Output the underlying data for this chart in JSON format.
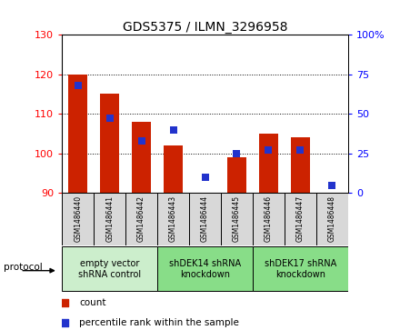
{
  "title": "GDS5375 / ILMN_3296958",
  "samples": [
    "GSM1486440",
    "GSM1486441",
    "GSM1486442",
    "GSM1486443",
    "GSM1486444",
    "GSM1486445",
    "GSM1486446",
    "GSM1486447",
    "GSM1486448"
  ],
  "counts": [
    120,
    115,
    108,
    102,
    90,
    99,
    105,
    104,
    90
  ],
  "percentiles": [
    68,
    47,
    33,
    40,
    10,
    25,
    27,
    27,
    5
  ],
  "ymin": 90,
  "ymax": 130,
  "y2min": 0,
  "y2max": 100,
  "yticks": [
    90,
    100,
    110,
    120,
    130
  ],
  "y2ticks": [
    0,
    25,
    50,
    75,
    100
  ],
  "bar_color": "#cc2200",
  "dot_color": "#2233cc",
  "groups": [
    {
      "label": "empty vector\nshRNA control",
      "start": 0,
      "end": 3,
      "color": "#cceecc"
    },
    {
      "label": "shDEK14 shRNA\nknockdown",
      "start": 3,
      "end": 6,
      "color": "#88dd88"
    },
    {
      "label": "shDEK17 shRNA\nknockdown",
      "start": 6,
      "end": 9,
      "color": "#88dd88"
    }
  ],
  "cell_bg": "#d8d8d8",
  "plot_bg": "#ffffff",
  "bar_width": 0.6,
  "dot_size": 28,
  "title_fontsize": 10,
  "tick_fontsize": 8,
  "sample_fontsize": 5.5,
  "group_fontsize": 7,
  "legend_fontsize": 7.5
}
